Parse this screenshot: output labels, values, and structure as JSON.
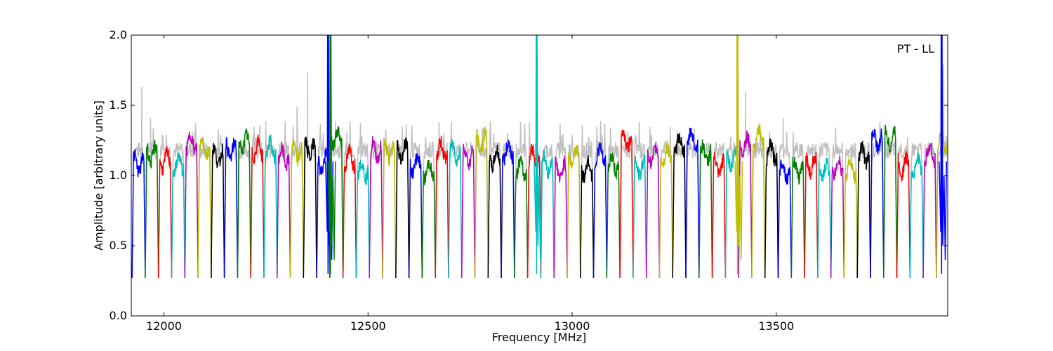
{
  "chart_data": {
    "type": "line",
    "title": "",
    "xlabel": "Frequency [MHz]",
    "ylabel": "Amplitude [arbitrary units]",
    "annotation": "PT - LL",
    "xlim": [
      11920,
      13920
    ],
    "ylim": [
      0.0,
      2.0
    ],
    "x_ticks": [
      12000,
      12500,
      13000,
      13500
    ],
    "x_tick_labels": [
      "12000",
      "12500",
      "13000",
      "13500"
    ],
    "y_ticks": [
      0.0,
      0.5,
      1.0,
      1.5,
      2.0
    ],
    "y_tick_labels": [
      "0.0",
      "0.5",
      "1.0",
      "1.5",
      "2.0"
    ],
    "grid": false,
    "legend": "none",
    "color_cycle": [
      "#0000ff",
      "#008000",
      "#ff0000",
      "#00bfbf",
      "#bf00bf",
      "#bfbf00",
      "#000000"
    ],
    "background_trace_color": "#c0c0c0",
    "channel_width_mhz": 32.3,
    "channel_start_mhz": 11922,
    "channel_count": 62,
    "spurs": [
      {
        "x": 12402,
        "peak": 2.0,
        "color": "#0000ff"
      },
      {
        "x": 12408,
        "peak": 2.0,
        "color": "#008000"
      },
      {
        "x": 12913,
        "peak": 2.0,
        "color": "#00bfbf"
      },
      {
        "x": 13405,
        "peak": 2.0,
        "color": "#bfbf00"
      },
      {
        "x": 13905,
        "peak": 2.0,
        "color": "#0000ff"
      }
    ],
    "gray_peaks": [
      {
        "x": 11946,
        "y": 1.63
      },
      {
        "x": 11967,
        "y": 1.41
      },
      {
        "x": 12352,
        "y": 1.74
      },
      {
        "x": 12326,
        "y": 1.49
      },
      {
        "x": 13425,
        "y": 1.6
      },
      {
        "x": 13517,
        "y": 1.41
      },
      {
        "x": 13910,
        "y": 1.79
      }
    ]
  }
}
